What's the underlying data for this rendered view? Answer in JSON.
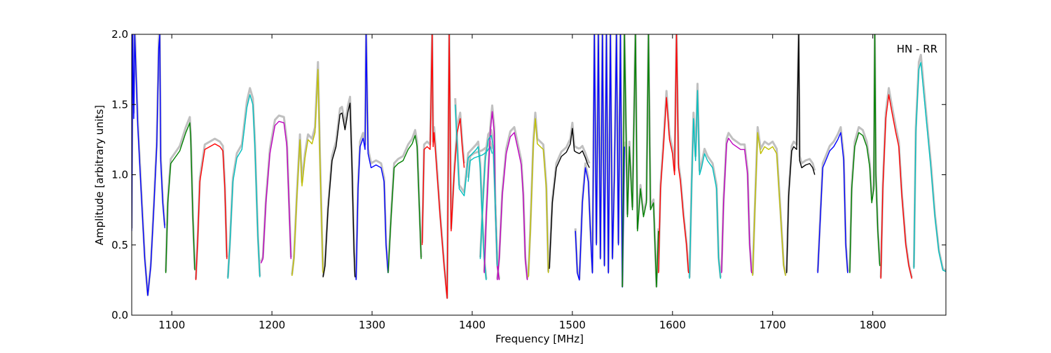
{
  "chart_data": {
    "type": "line",
    "title": "",
    "annotation": "HN - RR",
    "xlabel": "Frequency [MHz]",
    "ylabel": "Amplitude [arbitrary units]",
    "xlim": [
      1060,
      1873
    ],
    "ylim": [
      0.0,
      2.0
    ],
    "xticks": [
      1100,
      1200,
      1300,
      1400,
      1500,
      1600,
      1700,
      1800
    ],
    "xtick_labels": [
      "1100",
      "1200",
      "1300",
      "1400",
      "1500",
      "1600",
      "1700",
      "1800"
    ],
    "yticks": [
      0.0,
      0.5,
      1.0,
      1.5,
      2.0
    ],
    "ytick_labels": [
      "0.0",
      "0.5",
      "1.0",
      "1.5",
      "2.0"
    ],
    "grid": false,
    "legend": "none",
    "background_color": "#c0c0c0",
    "series": [
      {
        "color": "#0000ff",
        "x": [
          1060,
          1061,
          1062,
          1063,
          1066,
          1070,
          1073,
          1076,
          1079,
          1082,
          1085,
          1087,
          1088,
          1089,
          1091,
          1093
        ],
        "y": [
          0.6,
          2.0,
          1.4,
          2.0,
          1.35,
          0.8,
          0.4,
          0.14,
          0.35,
          0.75,
          1.2,
          1.9,
          2.0,
          1.1,
          0.8,
          0.62
        ]
      },
      {
        "color": "#008000",
        "x": [
          1094,
          1096,
          1099,
          1103,
          1108,
          1114,
          1118,
          1119,
          1121,
          1123
        ],
        "y": [
          0.3,
          0.8,
          1.08,
          1.12,
          1.17,
          1.3,
          1.37,
          1.25,
          0.7,
          0.32
        ]
      },
      {
        "color": "#ff0000",
        "x": [
          1124,
          1126,
          1128,
          1133,
          1138,
          1143,
          1148,
          1151,
          1153,
          1155
        ],
        "y": [
          0.25,
          0.55,
          0.95,
          1.18,
          1.2,
          1.22,
          1.2,
          1.17,
          0.9,
          0.4
        ]
      },
      {
        "color": "#00bfbf",
        "x": [
          1156,
          1158,
          1161,
          1165,
          1170,
          1175,
          1178,
          1181,
          1183,
          1186,
          1188
        ],
        "y": [
          0.26,
          0.5,
          0.95,
          1.12,
          1.18,
          1.48,
          1.57,
          1.5,
          1.2,
          0.55,
          0.27
        ]
      },
      {
        "color": "#bf00bf",
        "x": [
          1189,
          1191,
          1194,
          1198,
          1203,
          1207,
          1212,
          1215,
          1217,
          1219
        ],
        "y": [
          0.37,
          0.4,
          0.8,
          1.15,
          1.35,
          1.38,
          1.37,
          1.2,
          0.8,
          0.4
        ]
      },
      {
        "color": "#bfbf00",
        "x": [
          1220,
          1222,
          1225,
          1228,
          1230,
          1233,
          1236,
          1240,
          1243,
          1246,
          1248,
          1250,
          1251
        ],
        "y": [
          0.28,
          0.4,
          0.85,
          1.25,
          0.92,
          1.12,
          1.25,
          1.22,
          1.3,
          1.75,
          1.1,
          0.55,
          0.3
        ]
      },
      {
        "color": "#000000",
        "x": [
          1251,
          1253,
          1256,
          1260,
          1264,
          1268,
          1270,
          1273,
          1276,
          1278,
          1280,
          1282,
          1283
        ],
        "y": [
          0.27,
          0.35,
          0.75,
          1.1,
          1.2,
          1.43,
          1.44,
          1.32,
          1.45,
          1.51,
          1.05,
          0.45,
          0.27
        ]
      },
      {
        "color": "#0000ff",
        "x": [
          1284,
          1286,
          1288,
          1291,
          1293,
          1294,
          1296,
          1299,
          1304,
          1309,
          1312,
          1314,
          1316
        ],
        "y": [
          0.25,
          0.9,
          1.2,
          1.26,
          1.18,
          2.0,
          1.15,
          1.05,
          1.07,
          1.05,
          0.95,
          0.5,
          0.3
        ]
      },
      {
        "color": "#008000",
        "x": [
          1316,
          1319,
          1322,
          1326,
          1331,
          1336,
          1340,
          1343,
          1345,
          1347,
          1349
        ],
        "y": [
          0.3,
          0.7,
          1.05,
          1.08,
          1.1,
          1.18,
          1.22,
          1.28,
          1.2,
          0.8,
          0.4
        ]
      },
      {
        "color": "#ff0000",
        "x": [
          1350,
          1352,
          1355,
          1358,
          1360,
          1361,
          1362,
          1365,
          1368,
          1372,
          1375,
          1377,
          1379,
          1382,
          1385,
          1388,
          1390,
          1392
        ],
        "y": [
          0.5,
          1.18,
          1.2,
          1.18,
          2.0,
          1.2,
          1.3,
          1.0,
          0.7,
          0.35,
          0.12,
          2.0,
          0.6,
          1.0,
          1.3,
          1.4,
          1.2,
          1.05
        ]
      },
      {
        "color": "#00bfbf",
        "x": [
          1383,
          1387,
          1392,
          1396,
          1400,
          1404,
          1406,
          1408,
          1410,
          1412,
          1414
        ],
        "y": [
          1.5,
          0.9,
          0.85,
          1.12,
          1.15,
          1.18,
          1.2,
          1.05,
          0.7,
          0.4,
          0.25
        ]
      },
      {
        "color": "#00bfbf",
        "x": [
          1396,
          1398,
          1402,
          1406,
          1410,
          1414,
          1418,
          1420
        ],
        "y": [
          0.95,
          1.1,
          1.12,
          1.13,
          1.14,
          1.16,
          1.2,
          1.15
        ]
      },
      {
        "color": "#bf00bf",
        "x": [
          1412,
          1414,
          1418,
          1420,
          1422,
          1423,
          1425,
          1427
        ],
        "y": [
          0.3,
          0.7,
          1.3,
          1.45,
          1.3,
          0.8,
          0.35,
          0.25
        ]
      },
      {
        "color": "#00bfbf",
        "x": [
          1408,
          1410,
          1413,
          1416,
          1419,
          1421,
          1423,
          1425
        ],
        "y": [
          0.4,
          0.7,
          1.1,
          1.25,
          1.28,
          1.2,
          0.8,
          0.35
        ]
      },
      {
        "color": "#bf00bf",
        "x": [
          1425,
          1427,
          1430,
          1434,
          1438,
          1442,
          1446,
          1449,
          1451,
          1453,
          1455
        ],
        "y": [
          0.25,
          0.4,
          0.85,
          1.15,
          1.27,
          1.3,
          1.17,
          1.07,
          0.85,
          0.4,
          0.25
        ]
      },
      {
        "color": "#bfbf00",
        "x": [
          1456,
          1458,
          1461,
          1463,
          1465,
          1468,
          1471,
          1474,
          1476
        ],
        "y": [
          0.27,
          0.6,
          1.2,
          1.4,
          1.22,
          1.2,
          1.18,
          0.9,
          0.3
        ]
      },
      {
        "color": "#000000",
        "x": [
          1477,
          1480,
          1484,
          1489,
          1494,
          1498,
          1500,
          1502,
          1504,
          1507
        ],
        "y": [
          0.33,
          0.8,
          1.05,
          1.13,
          1.16,
          1.22,
          1.33,
          1.17,
          1.16,
          1.15
        ]
      },
      {
        "color": "#000000",
        "x": [
          1507,
          1510,
          1513,
          1515,
          1517
        ],
        "y": [
          1.15,
          1.17,
          1.12,
          1.08,
          1.05
        ]
      },
      {
        "color": "#0000ff",
        "x": [
          1503,
          1505,
          1507,
          1510,
          1513,
          1516,
          1518,
          1520,
          1522,
          1524,
          1526,
          1528,
          1530,
          1532,
          1534,
          1536,
          1538,
          1540,
          1542,
          1544,
          1546,
          1548,
          1550,
          1552
        ],
        "y": [
          0.6,
          0.3,
          0.25,
          0.8,
          1.05,
          0.95,
          0.6,
          0.3,
          2.0,
          0.5,
          2.0,
          0.4,
          2.0,
          0.35,
          2.0,
          0.3,
          2.0,
          0.4,
          1.0,
          2.0,
          0.5,
          2.0,
          0.2,
          1.2
        ]
      },
      {
        "color": "#008000",
        "x": [
          1550,
          1552,
          1555,
          1557,
          1560,
          1563,
          1565,
          1568,
          1571,
          1574,
          1576,
          1578,
          1581,
          1584,
          1586
        ],
        "y": [
          0.2,
          2.0,
          0.7,
          1.2,
          0.75,
          2.0,
          0.6,
          0.9,
          0.7,
          0.8,
          2.0,
          0.75,
          0.8,
          0.2,
          0.6
        ]
      },
      {
        "color": "#ff0000",
        "x": [
          1586,
          1588,
          1591,
          1594,
          1597,
          1600,
          1602,
          1604,
          1606,
          1608,
          1611,
          1614,
          1616
        ],
        "y": [
          0.3,
          0.9,
          1.2,
          1.55,
          1.25,
          1.15,
          1.0,
          2.0,
          1.05,
          0.95,
          0.7,
          0.5,
          0.3
        ]
      },
      {
        "color": "#00bfbf",
        "x": [
          1617,
          1619,
          1621,
          1623,
          1625,
          1627,
          1629,
          1632,
          1635,
          1640,
          1644,
          1646,
          1648
        ],
        "y": [
          0.26,
          0.9,
          1.4,
          1.1,
          1.6,
          1.0,
          1.05,
          1.15,
          1.1,
          1.05,
          0.9,
          0.4,
          0.26
        ]
      },
      {
        "color": "#bf00bf",
        "x": [
          1649,
          1651,
          1654,
          1656,
          1660,
          1664,
          1668,
          1672,
          1675,
          1677,
          1679
        ],
        "y": [
          0.3,
          0.8,
          1.22,
          1.26,
          1.22,
          1.2,
          1.18,
          1.18,
          1.0,
          0.5,
          0.3
        ]
      },
      {
        "color": "#bfbf00",
        "x": [
          1680,
          1682,
          1685,
          1688,
          1692,
          1696,
          1700,
          1704,
          1708,
          1711,
          1713
        ],
        "y": [
          0.28,
          0.7,
          1.3,
          1.15,
          1.2,
          1.18,
          1.2,
          1.15,
          0.7,
          0.35,
          0.28
        ]
      },
      {
        "color": "#000000",
        "x": [
          1714,
          1716,
          1719,
          1721,
          1724,
          1726,
          1727,
          1729,
          1733,
          1737,
          1740,
          1742
        ],
        "y": [
          0.3,
          0.85,
          1.17,
          1.2,
          1.18,
          2.0,
          1.1,
          1.05,
          1.07,
          1.08,
          1.05,
          1.0
        ]
      },
      {
        "color": "#0000ff",
        "x": [
          1745,
          1747,
          1750,
          1753,
          1757,
          1761,
          1765,
          1768,
          1771,
          1773,
          1775
        ],
        "y": [
          0.3,
          0.6,
          1.05,
          1.1,
          1.17,
          1.2,
          1.25,
          1.3,
          1.1,
          0.5,
          0.3
        ]
      },
      {
        "color": "#008000",
        "x": [
          1777,
          1779,
          1782,
          1786,
          1790,
          1794,
          1797,
          1799,
          1801,
          1802,
          1803,
          1805,
          1807
        ],
        "y": [
          0.3,
          0.9,
          1.2,
          1.3,
          1.28,
          1.2,
          1.05,
          0.8,
          0.9,
          2.0,
          1.0,
          0.6,
          0.35
        ]
      },
      {
        "color": "#ff0000",
        "x": [
          1808,
          1810,
          1813,
          1816,
          1819,
          1823,
          1826,
          1829,
          1833,
          1836,
          1839
        ],
        "y": [
          0.26,
          0.9,
          1.4,
          1.57,
          1.45,
          1.3,
          1.2,
          0.85,
          0.5,
          0.35,
          0.26
        ]
      },
      {
        "color": "#00bfbf",
        "x": [
          1841,
          1843,
          1846,
          1848,
          1850,
          1854,
          1858,
          1862,
          1866,
          1870,
          1873
        ],
        "y": [
          0.33,
          1.3,
          1.75,
          1.8,
          1.65,
          1.35,
          1.05,
          0.7,
          0.45,
          0.32,
          0.31
        ]
      }
    ]
  }
}
